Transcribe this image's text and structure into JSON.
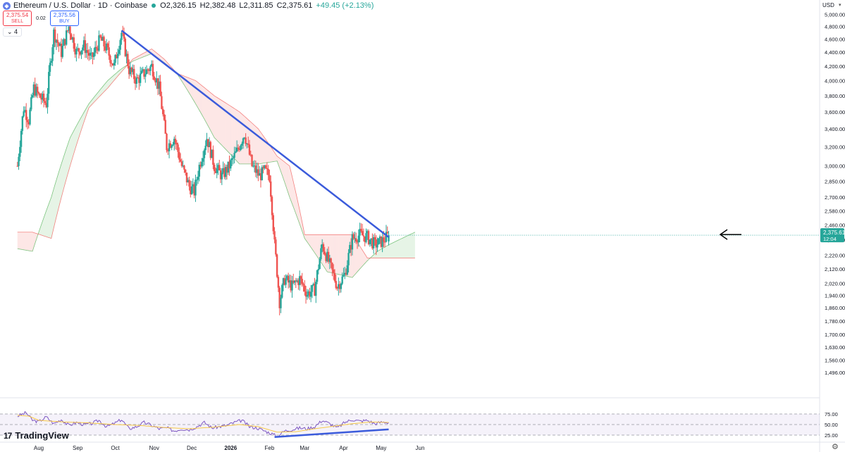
{
  "header": {
    "symbol_title": "Ethereum / U.S. Dollar · 1D · Coinbase",
    "open": "O2,326.15",
    "high": "H2,382.48",
    "low": "L2,311.85",
    "close": "C2,375.61",
    "change": "+49.45 (+2.13%)",
    "sell_price": "2,375.54",
    "sell_label": "SELL",
    "spread": "0.02",
    "buy_price": "2,375.56",
    "buy_label": "BUY",
    "indicator_count": "4",
    "currency": "USD"
  },
  "logo_text": "TradingView",
  "colors": {
    "up": "#26a69a",
    "down": "#ef5350",
    "trend": "#3b5bdb",
    "rsi": "#7e57c2",
    "rsi_ma": "#f7c948",
    "kumo_green": "#4caf50",
    "kumo_red": "#ef5350"
  },
  "chart_data": {
    "type": "candlestick",
    "title": "Ethereum / U.S. Dollar · 1D · Coinbase",
    "ylim": [
      1400,
      5100
    ],
    "y_scale": "log",
    "y_ticks": [
      5000,
      4800,
      4600,
      4400,
      4200,
      4000,
      3800,
      3600,
      3400,
      3200,
      3000,
      2850,
      2700,
      2580,
      2460,
      2340,
      2220,
      2120,
      2020,
      1940,
      1860,
      1780,
      1700,
      1630,
      1560,
      1496
    ],
    "y_tick_labels": [
      "5,000.00",
      "4,800.00",
      "4,600.00",
      "4,400.00",
      "4,200.00",
      "4,000.00",
      "3,800.00",
      "3,600.00",
      "3,400.00",
      "3,200.00",
      "3,000.00",
      "2,850.00",
      "2,700.00",
      "2,580.00",
      "2,460.00",
      "2,340.00",
      "2,220.00",
      "2,120.00",
      "2,020.00",
      "1,940.00",
      "1,860.00",
      "1,780.00",
      "1,700.00",
      "1,630.00",
      "1,560.00",
      "1,496.00"
    ],
    "x_labels": [
      "Aug",
      "Sep",
      "Oct",
      "Nov",
      "Dec",
      "2026",
      "Feb",
      "Mar",
      "Apr",
      "May",
      "Jun"
    ],
    "x_label_days": [
      0,
      31,
      61,
      92,
      122,
      153,
      184,
      212,
      243,
      273,
      304
    ],
    "last_price": "2,375.61",
    "countdown": "12:04",
    "price_anchors": [
      [
        -17,
        3000
      ],
      [
        -12,
        3650
      ],
      [
        -8,
        3500
      ],
      [
        -4,
        3900
      ],
      [
        0,
        3800
      ],
      [
        6,
        3700
      ],
      [
        12,
        4700
      ],
      [
        18,
        4400
      ],
      [
        24,
        4800
      ],
      [
        30,
        4400
      ],
      [
        36,
        4500
      ],
      [
        42,
        4300
      ],
      [
        49,
        4600
      ],
      [
        54,
        4450
      ],
      [
        60,
        4200
      ],
      [
        66,
        4700
      ],
      [
        72,
        4150
      ],
      [
        78,
        4000
      ],
      [
        84,
        4100
      ],
      [
        90,
        4200
      ],
      [
        96,
        3900
      ],
      [
        102,
        3200
      ],
      [
        108,
        3300
      ],
      [
        114,
        3000
      ],
      [
        120,
        2800
      ],
      [
        124,
        2750
      ],
      [
        128,
        3000
      ],
      [
        134,
        3300
      ],
      [
        140,
        3000
      ],
      [
        146,
        2900
      ],
      [
        152,
        3000
      ],
      [
        158,
        3150
      ],
      [
        164,
        3350
      ],
      [
        170,
        3000
      ],
      [
        176,
        2900
      ],
      [
        180,
        2950
      ],
      [
        184,
        2900
      ],
      [
        188,
        2300
      ],
      [
        192,
        1900
      ],
      [
        196,
        2050
      ],
      [
        202,
        2000
      ],
      [
        208,
        2050
      ],
      [
        214,
        1950
      ],
      [
        220,
        1980
      ],
      [
        226,
        2300
      ],
      [
        232,
        2150
      ],
      [
        238,
        2000
      ],
      [
        244,
        2080
      ],
      [
        250,
        2350
      ],
      [
        256,
        2380
      ],
      [
        262,
        2360
      ],
      [
        268,
        2300
      ],
      [
        274,
        2330
      ],
      [
        279,
        2376
      ]
    ],
    "trendline_upper": {
      "from": [
        66,
        4735
      ],
      "to": [
        279,
        2360
      ]
    },
    "trendline_rsi": {
      "from": [
        188,
        20.5
      ],
      "to": [
        279,
        38.5
      ]
    },
    "cloud": {
      "green_span": [
        [
          -17,
          2270
        ],
        [
          -5,
          2250
        ],
        [
          10,
          2700
        ],
        [
          25,
          3300
        ],
        [
          40,
          3700
        ],
        [
          55,
          4000
        ],
        [
          65,
          4150
        ],
        [
          75,
          4270
        ],
        [
          90,
          4380
        ],
        [
          100,
          4250
        ],
        [
          110,
          4100
        ],
        [
          125,
          3700
        ],
        [
          140,
          3300
        ],
        [
          160,
          3020
        ],
        [
          175,
          3020
        ],
        [
          190,
          3050
        ],
        [
          200,
          2700
        ],
        [
          212,
          2350
        ],
        [
          230,
          2100
        ],
        [
          250,
          2060
        ],
        [
          262,
          2180
        ],
        [
          270,
          2250
        ],
        [
          279,
          2300
        ],
        [
          300,
          2400
        ]
      ],
      "red_span": [
        [
          -17,
          2400
        ],
        [
          -5,
          2400
        ],
        [
          10,
          2350
        ],
        [
          25,
          3000
        ],
        [
          40,
          3650
        ],
        [
          55,
          3900
        ],
        [
          65,
          4100
        ],
        [
          75,
          4300
        ],
        [
          90,
          4450
        ],
        [
          100,
          4300
        ],
        [
          110,
          4100
        ],
        [
          125,
          4000
        ],
        [
          140,
          3800
        ],
        [
          160,
          3600
        ],
        [
          175,
          3400
        ],
        [
          190,
          3100
        ],
        [
          200,
          3000
        ],
        [
          212,
          2380
        ],
        [
          230,
          2380
        ],
        [
          250,
          2380
        ],
        [
          262,
          2200
        ],
        [
          270,
          2200
        ],
        [
          279,
          2200
        ],
        [
          300,
          2200
        ]
      ]
    },
    "rsi": {
      "ylim": [
        0,
        100
      ],
      "ticks": [
        75,
        50,
        25
      ],
      "tick_labels": [
        "75.00",
        "50.00",
        "25.00"
      ],
      "anchors": [
        [
          -17,
          70
        ],
        [
          -10,
          78
        ],
        [
          -5,
          60
        ],
        [
          0,
          57
        ],
        [
          6,
          68
        ],
        [
          12,
          52
        ],
        [
          18,
          62
        ],
        [
          24,
          48
        ],
        [
          30,
          55
        ],
        [
          36,
          50
        ],
        [
          42,
          52
        ],
        [
          48,
          60
        ],
        [
          54,
          45
        ],
        [
          60,
          52
        ],
        [
          66,
          62
        ],
        [
          72,
          40
        ],
        [
          78,
          45
        ],
        [
          84,
          55
        ],
        [
          90,
          48
        ],
        [
          96,
          40
        ],
        [
          102,
          42
        ],
        [
          108,
          35
        ],
        [
          114,
          40
        ],
        [
          120,
          38
        ],
        [
          126,
          45
        ],
        [
          132,
          55
        ],
        [
          138,
          42
        ],
        [
          144,
          45
        ],
        [
          150,
          48
        ],
        [
          156,
          55
        ],
        [
          162,
          60
        ],
        [
          168,
          45
        ],
        [
          174,
          42
        ],
        [
          180,
          35
        ],
        [
          186,
          28
        ],
        [
          190,
          22
        ],
        [
          196,
          35
        ],
        [
          202,
          38
        ],
        [
          208,
          42
        ],
        [
          214,
          40
        ],
        [
          220,
          45
        ],
        [
          226,
          60
        ],
        [
          232,
          52
        ],
        [
          238,
          42
        ],
        [
          244,
          55
        ],
        [
          250,
          62
        ],
        [
          256,
          58
        ],
        [
          262,
          60
        ],
        [
          268,
          52
        ],
        [
          274,
          56
        ],
        [
          279,
          55
        ]
      ],
      "ma_anchors": [
        [
          -17,
          72
        ],
        [
          -8,
          70
        ],
        [
          0,
          60
        ],
        [
          20,
          56
        ],
        [
          40,
          54
        ],
        [
          60,
          50
        ],
        [
          80,
          48
        ],
        [
          100,
          43
        ],
        [
          120,
          40
        ],
        [
          140,
          44
        ],
        [
          160,
          50
        ],
        [
          175,
          45
        ],
        [
          190,
          32
        ],
        [
          205,
          33
        ],
        [
          220,
          40
        ],
        [
          235,
          46
        ],
        [
          250,
          52
        ],
        [
          265,
          56
        ],
        [
          279,
          55
        ]
      ]
    }
  }
}
